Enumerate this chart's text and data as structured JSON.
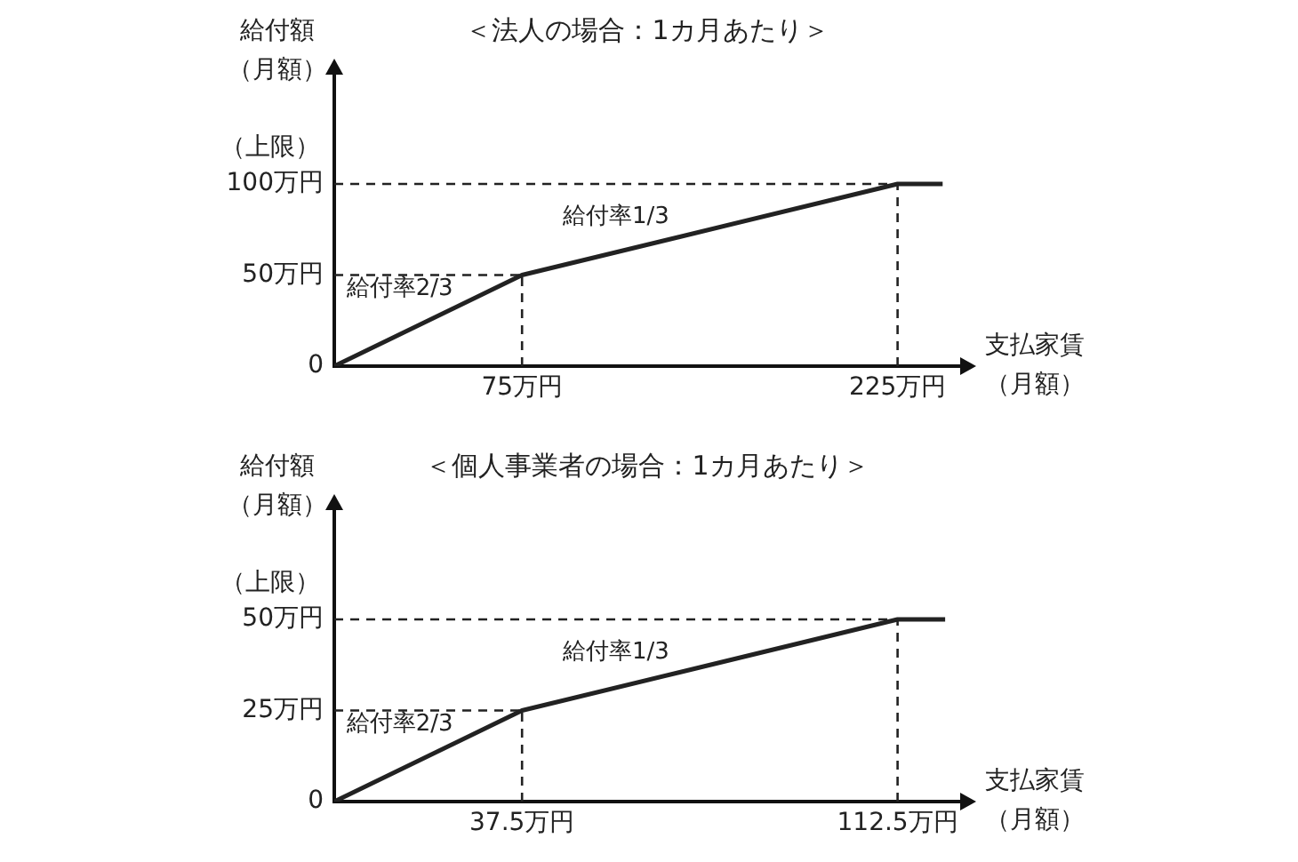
{
  "chart_data": [
    {
      "type": "line",
      "title": "＜法人の場合：1カ月あたり＞",
      "xlabel": "支払家賃（月額）",
      "ylabel": "給付額（月額）",
      "series": [
        {
          "color": "#222222",
          "x": [
            0,
            75,
            225,
            243
          ],
          "values": [
            0,
            50,
            100,
            100
          ]
        }
      ],
      "xlim": [
        0,
        250
      ],
      "ylim": [
        0,
        160
      ],
      "xticks": [
        {
          "value": 75,
          "label": "75万円"
        },
        {
          "value": 225,
          "label": "225万円"
        }
      ],
      "yticks": [
        0,
        {
          "value": 50,
          "label": "50万円"
        },
        {
          "value": 100,
          "label": "100万円"
        }
      ],
      "ref_lines": [
        {
          "axis": "y",
          "value": 50,
          "line_style": "dashed"
        },
        {
          "axis": "y",
          "value": 100,
          "line_style": "dashed"
        },
        {
          "axis": "x",
          "value": 75,
          "line_style": "dashed"
        },
        {
          "axis": "x",
          "value": 225,
          "line_style": "dashed"
        }
      ],
      "annotations": [
        "（上限）",
        "給付率2/3",
        "給付率1/3"
      ],
      "grid": false,
      "legend": false,
      "marker": "none",
      "line_style": "solid"
    },
    {
      "type": "line",
      "title": "＜個人事業者の場合：1カ月あたり＞",
      "xlabel": "支払家賃（月額）",
      "ylabel": "給付額（月額）",
      "series": [
        {
          "color": "#222222",
          "x": [
            0,
            37.5,
            112.5,
            122
          ],
          "values": [
            0,
            25,
            50,
            50
          ]
        }
      ],
      "xlim": [
        0,
        125
      ],
      "ylim": [
        0,
        80
      ],
      "xticks": [
        {
          "value": 37.5,
          "label": "37.5万円"
        },
        {
          "value": 112.5,
          "label": "112.5万円"
        }
      ],
      "yticks": [
        0,
        {
          "value": 25,
          "label": "25万円"
        },
        {
          "value": 50,
          "label": "50万円"
        }
      ],
      "ref_lines": [
        {
          "axis": "y",
          "value": 25,
          "line_style": "dashed"
        },
        {
          "axis": "y",
          "value": 50,
          "line_style": "dashed"
        },
        {
          "axis": "x",
          "value": 37.5,
          "line_style": "dashed"
        },
        {
          "axis": "x",
          "value": 112.5,
          "line_style": "dashed"
        }
      ],
      "annotations": [
        "（上限）",
        "給付率2/3",
        "給付率1/3"
      ],
      "grid": false,
      "legend": false,
      "marker": "none",
      "line_style": "solid"
    }
  ]
}
